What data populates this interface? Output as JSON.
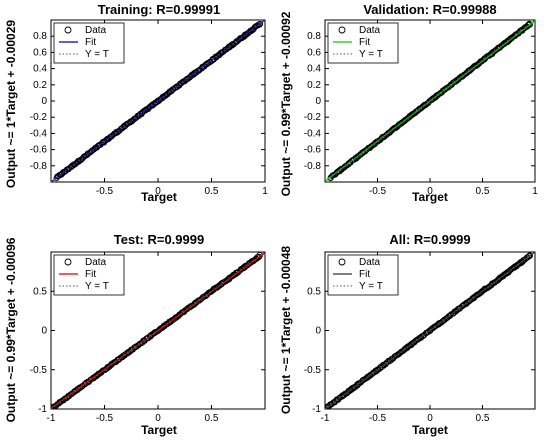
{
  "chart_data": [
    {
      "type": "scatter",
      "title": "Training: R=0.99991",
      "xlabel": "Target",
      "ylabel": "Output ~= 1*Target + -0.00029",
      "xlim": [
        -1,
        1
      ],
      "ylim": [
        -1,
        1
      ],
      "xticks": [
        -0.5,
        0,
        0.5,
        1
      ],
      "yticks": [
        -0.8,
        -0.6,
        -0.4,
        -0.2,
        0,
        0.2,
        0.4,
        0.6,
        0.8
      ],
      "data_range": [
        -0.95,
        0.95
      ],
      "fit": {
        "slope": 1,
        "intercept": -0.00029,
        "color": "#0000aa"
      },
      "legend": [
        "Data",
        "Fit",
        "Y = T"
      ]
    },
    {
      "type": "scatter",
      "title": "Validation: R=0.99988",
      "xlabel": "Target",
      "ylabel": "Output ~= 0.99*Target + -0.00092",
      "xlim": [
        -1,
        1
      ],
      "ylim": [
        -1,
        1
      ],
      "xticks": [
        -0.5,
        0,
        0.5,
        1
      ],
      "yticks": [
        -0.8,
        -0.6,
        -0.4,
        -0.2,
        0,
        0.2,
        0.4,
        0.6,
        0.8
      ],
      "data_range": [
        -0.95,
        0.95
      ],
      "fit": {
        "slope": 0.99,
        "intercept": -0.00092,
        "color": "#00cc00"
      },
      "legend": [
        "Data",
        "Fit",
        "Y = T"
      ]
    },
    {
      "type": "scatter",
      "title": "Test: R=0.9999",
      "xlabel": "Target",
      "ylabel": "Output ~= 0.99*Target + -0.00096",
      "xlim": [
        -1,
        1
      ],
      "ylim": [
        -1,
        1
      ],
      "xticks": [
        -1,
        -0.5,
        0,
        0.5
      ],
      "yticks": [
        -1,
        -0.5,
        0,
        0.5
      ],
      "data_range": [
        -1,
        0.95
      ],
      "fit": {
        "slope": 0.99,
        "intercept": -0.00096,
        "color": "#dd0000"
      },
      "legend": [
        "Data",
        "Fit",
        "Y = T"
      ]
    },
    {
      "type": "scatter",
      "title": "All: R=0.9999",
      "xlabel": "Target",
      "ylabel": "Output ~= 1*Target + -0.00048",
      "xlim": [
        -1,
        1
      ],
      "ylim": [
        -1,
        1
      ],
      "xticks": [
        -1,
        -0.5,
        0,
        0.5
      ],
      "yticks": [
        -1,
        -0.5,
        0,
        0.5
      ],
      "data_range": [
        -1,
        0.95
      ],
      "fit": {
        "slope": 1,
        "intercept": -0.00048,
        "color": "#333333"
      },
      "legend": [
        "Data",
        "Fit",
        "Y = T"
      ]
    }
  ]
}
